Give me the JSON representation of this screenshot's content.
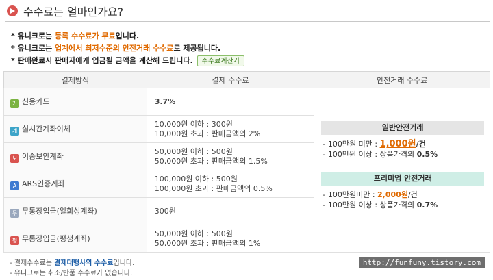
{
  "header": {
    "title": "수수료는 얼마인가요?"
  },
  "notes": {
    "line1": {
      "prefix": "* 유니크로는 ",
      "highlight": "등록 수수료가 무료",
      "suffix": "입니다."
    },
    "line2": {
      "prefix": "* 유니크로는 ",
      "highlight": "업계에서 최저수준의 안전거래 수수료",
      "suffix": "로 제공됩니다."
    },
    "line3": {
      "text": "* 판매완료시 판매자에게 입금될 금액을 계산해 드립니다.",
      "button": "수수료계산기"
    }
  },
  "table": {
    "headers": [
      "결제방식",
      "결제 수수료",
      "안전거래 수수료"
    ],
    "rows": [
      {
        "icon": "카",
        "icon_name": "card-icon",
        "method": "신용카드",
        "fee1": "3.7%",
        "fee2": ""
      },
      {
        "icon": "계",
        "icon_name": "bank-transfer-icon",
        "method": "실시간계좌이체",
        "fee1": "10,000원 이하 : 300원",
        "fee2": "10,000원 초과 : 판매금액의 2%"
      },
      {
        "icon": "보",
        "icon_name": "secure-account-icon",
        "method": "이중보안계좌",
        "fee1": "50,000원 이하 : 500원",
        "fee2": "50,000원 초과 : 판매금액의 1.5%"
      },
      {
        "icon": "A",
        "icon_name": "ars-icon",
        "method": "ARS인증계좌",
        "fee1": "100,000원 이하 : 500원",
        "fee2": "100,000원 초과 : 판매금액의 0.5%"
      },
      {
        "icon": "무",
        "icon_name": "deposit-once-icon",
        "method": "무통장입금(일회성계좌)",
        "fee1": "300원",
        "fee2": ""
      },
      {
        "icon": "평",
        "icon_name": "deposit-lifetime-icon",
        "method": "무통장입금(평생계좌)",
        "fee1": "50,000원 이하 : 500원",
        "fee2": "50,000원 초과 : 판매금액의 1%"
      }
    ],
    "safe": {
      "general": {
        "label": "일반안전거래",
        "line1_prefix": "- 100만원 미만 : ",
        "line1_value": "1,000원",
        "line1_suffix": "/건",
        "line2_prefix": "- 100만원 이상 : 상품가격의 ",
        "line2_value": "0.5%"
      },
      "premium": {
        "label": "프리미엄 안전거래",
        "line1_prefix": "- 100만원미만 : ",
        "line1_value": "2,000원",
        "line1_suffix": "/건",
        "line2_prefix": "- 100만원 이상 : 상품가격의 ",
        "line2_value": "0.7%"
      }
    }
  },
  "footer": {
    "line1_prefix": "- 결제수수료는 ",
    "line1_highlight": "결제대행사의 수수료",
    "line1_suffix": "입니다.",
    "line2": "- 유니크로는 취소/반품 수수료가 없습니다.",
    "watermark": "http://funfuny.tistory.com"
  }
}
